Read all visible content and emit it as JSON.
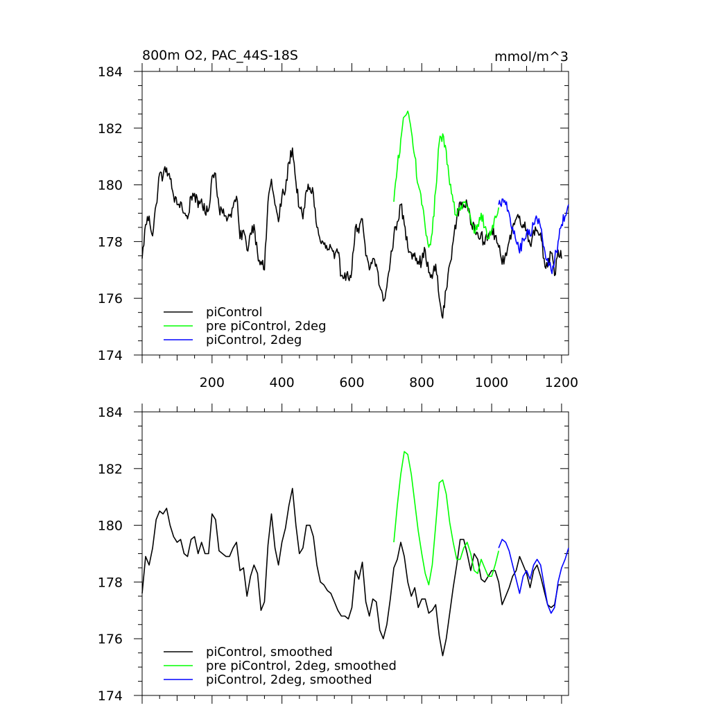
{
  "title_left": "800m O2, PAC_44S-18S",
  "units": "mmol/m^3",
  "chart_data": [
    {
      "type": "line",
      "panel": "top",
      "xlim": [
        0,
        1220
      ],
      "ylim": [
        174,
        184
      ],
      "yticks": [
        174,
        176,
        178,
        180,
        182,
        184
      ],
      "ytick_labels": [
        "174",
        "176",
        "178",
        "180",
        "182",
        "184"
      ],
      "xticks": [
        200,
        400,
        600,
        800,
        1000,
        1200
      ],
      "xtick_labels": [
        "200",
        "400",
        "600",
        "800",
        "1000",
        "1200"
      ],
      "legend": "bottom-left",
      "series": [
        {
          "name": "piControl",
          "color": "#000000",
          "noise": 0.22,
          "x": [
            0,
            10,
            20,
            30,
            40,
            50,
            60,
            70,
            80,
            90,
            100,
            110,
            120,
            130,
            140,
            150,
            160,
            170,
            180,
            190,
            200,
            210,
            220,
            230,
            240,
            250,
            260,
            270,
            280,
            290,
            300,
            310,
            320,
            330,
            340,
            350,
            360,
            370,
            380,
            390,
            400,
            410,
            420,
            430,
            440,
            450,
            460,
            470,
            480,
            490,
            500,
            510,
            520,
            530,
            540,
            550,
            560,
            570,
            580,
            590,
            600,
            610,
            620,
            630,
            640,
            650,
            660,
            670,
            680,
            690,
            700,
            710,
            720,
            730,
            740,
            750,
            760,
            770,
            780,
            790,
            800,
            810,
            820,
            830,
            840,
            850,
            860,
            870,
            880,
            890,
            900,
            910,
            920,
            930,
            940,
            950,
            960,
            970,
            980,
            990,
            1000,
            1010,
            1020,
            1030,
            1040,
            1050,
            1060,
            1070,
            1080,
            1090,
            1100,
            1110,
            1120,
            1130,
            1140,
            1150,
            1160,
            1170,
            1180,
            1190,
            1200
          ],
          "y": [
            177.4,
            178.6,
            178.9,
            178.2,
            179.3,
            180.4,
            180.3,
            180.6,
            180.2,
            179.6,
            179.3,
            179.4,
            179.0,
            178.8,
            179.6,
            179.7,
            179.2,
            179.5,
            179.0,
            179.1,
            180.3,
            180.4,
            179.2,
            179.0,
            178.9,
            178.9,
            179.2,
            179.6,
            178.1,
            178.4,
            177.7,
            178.3,
            178.6,
            177.6,
            177.3,
            177.0,
            179.4,
            180.2,
            179.3,
            178.7,
            179.6,
            179.8,
            180.8,
            181.3,
            180.1,
            179.2,
            178.8,
            179.8,
            179.9,
            179.7,
            178.5,
            178.0,
            177.9,
            177.7,
            177.8,
            177.4,
            177.6,
            176.8,
            176.9,
            176.7,
            177.0,
            178.5,
            178.3,
            178.8,
            177.5,
            177.0,
            177.4,
            177.2,
            176.4,
            175.9,
            176.4,
            177.3,
            178.2,
            178.7,
            179.3,
            178.6,
            177.8,
            177.6,
            177.6,
            177.3,
            177.3,
            177.7,
            176.9,
            176.7,
            177.2,
            176.0,
            175.3,
            176.3,
            177.2,
            178.0,
            178.8,
            179.4,
            179.3,
            179.3,
            178.6,
            178.6,
            178.3,
            178.3,
            177.9,
            178.2,
            178.4,
            178.2,
            177.8,
            177.2,
            177.6,
            178.0,
            178.5,
            178.8,
            178.9,
            178.6,
            178.4,
            177.9,
            178.4,
            178.4,
            178.3,
            177.4,
            177.1,
            177.6,
            176.8,
            177.7,
            177.4
          ]
        },
        {
          "name": "pre piControl, 2deg",
          "color": "#00ff00",
          "noise": 0.2,
          "x": [
            720,
            730,
            740,
            750,
            760,
            770,
            780,
            790,
            800,
            810,
            820,
            830,
            840,
            850,
            860,
            870,
            880,
            890,
            900,
            910,
            920,
            930,
            940,
            950,
            960,
            970,
            980,
            990,
            1000,
            1010,
            1020
          ],
          "y": [
            179.4,
            180.6,
            181.6,
            182.4,
            182.6,
            181.9,
            181.0,
            180.0,
            179.3,
            178.5,
            177.8,
            178.3,
            179.8,
            181.5,
            181.8,
            181.2,
            180.0,
            179.4,
            178.9,
            179.1,
            179.4,
            179.2,
            178.8,
            178.3,
            178.6,
            179.0,
            178.5,
            178.1,
            178.4,
            178.9,
            179.2
          ]
        },
        {
          "name": "piControl, 2deg",
          "color": "#0000ff",
          "noise": 0.22,
          "x": [
            1020,
            1030,
            1040,
            1050,
            1060,
            1070,
            1080,
            1090,
            1100,
            1110,
            1120,
            1130,
            1140,
            1150,
            1160,
            1170,
            1180,
            1190,
            1200,
            1210,
            1220
          ],
          "y": [
            179.3,
            179.5,
            179.3,
            179.0,
            178.5,
            178.0,
            177.6,
            178.1,
            178.3,
            178.2,
            178.6,
            178.8,
            178.5,
            177.8,
            177.4,
            177.0,
            177.3,
            178.0,
            178.6,
            178.9,
            179.3
          ]
        }
      ]
    },
    {
      "type": "line",
      "panel": "bottom",
      "xlim": [
        0,
        1220
      ],
      "ylim": [
        174,
        184
      ],
      "yticks": [
        174,
        176,
        178,
        180,
        182,
        184
      ],
      "ytick_labels": [
        "174",
        "176",
        "178",
        "180",
        "182",
        "184"
      ],
      "legend": "bottom-left",
      "series": [
        {
          "name": "piControl, smoothed",
          "color": "#000000",
          "noise": 0.0,
          "x": [
            0,
            10,
            20,
            30,
            40,
            50,
            60,
            70,
            80,
            90,
            100,
            110,
            120,
            130,
            140,
            150,
            160,
            170,
            180,
            190,
            200,
            210,
            220,
            230,
            240,
            250,
            260,
            270,
            280,
            290,
            300,
            310,
            320,
            330,
            340,
            350,
            360,
            370,
            380,
            390,
            400,
            410,
            420,
            430,
            440,
            450,
            460,
            470,
            480,
            490,
            500,
            510,
            520,
            530,
            540,
            550,
            560,
            570,
            580,
            590,
            600,
            610,
            620,
            630,
            640,
            650,
            660,
            670,
            680,
            690,
            700,
            710,
            720,
            730,
            740,
            750,
            760,
            770,
            780,
            790,
            800,
            810,
            820,
            830,
            840,
            850,
            860,
            870,
            880,
            890,
            900,
            910,
            920,
            930,
            940,
            950,
            960,
            970,
            980,
            990,
            1000,
            1010,
            1020,
            1030,
            1040,
            1050,
            1060,
            1070,
            1080,
            1090,
            1100,
            1110,
            1120,
            1130,
            1140,
            1150,
            1160,
            1170,
            1180,
            1190,
            1200
          ],
          "y": [
            177.6,
            178.9,
            178.6,
            179.2,
            180.2,
            180.5,
            180.4,
            180.6,
            180.0,
            179.6,
            179.4,
            179.5,
            179.0,
            178.9,
            179.5,
            179.6,
            179.0,
            179.4,
            179.0,
            179.0,
            180.4,
            180.2,
            179.1,
            179.0,
            178.9,
            178.9,
            179.2,
            179.4,
            178.4,
            178.5,
            177.5,
            178.2,
            178.6,
            178.3,
            177.0,
            177.3,
            179.3,
            180.4,
            179.2,
            178.6,
            179.4,
            179.9,
            180.7,
            181.3,
            180.0,
            179.0,
            179.2,
            180.0,
            180.0,
            179.6,
            178.6,
            178.0,
            177.9,
            177.7,
            177.6,
            177.3,
            177.0,
            176.8,
            176.8,
            176.7,
            177.1,
            178.4,
            178.1,
            178.7,
            177.3,
            176.8,
            177.4,
            177.3,
            176.3,
            176.0,
            176.5,
            177.4,
            178.5,
            178.8,
            179.4,
            178.9,
            178.0,
            177.5,
            177.8,
            177.1,
            177.4,
            177.4,
            176.9,
            177.0,
            177.2,
            176.1,
            175.4,
            176.0,
            176.9,
            177.8,
            178.6,
            179.5,
            179.5,
            179.0,
            178.4,
            179.0,
            178.8,
            178.1,
            178.0,
            178.2,
            178.4,
            178.4,
            178.0,
            177.2,
            177.5,
            177.8,
            178.2,
            178.4,
            178.9,
            178.6,
            178.3,
            177.8,
            178.4,
            178.6,
            178.2,
            177.7,
            177.2,
            177.1,
            177.2,
            177.9,
            177.9
          ]
        },
        {
          "name": "pre piControl, 2deg, smoothed",
          "color": "#00ff00",
          "noise": 0.0,
          "x": [
            720,
            730,
            740,
            750,
            760,
            770,
            780,
            790,
            800,
            810,
            820,
            830,
            840,
            850,
            860,
            870,
            880,
            890,
            900,
            910,
            920,
            930,
            940,
            950,
            960,
            970,
            980,
            990,
            1000,
            1010,
            1020
          ],
          "y": [
            179.4,
            180.7,
            181.8,
            182.6,
            182.5,
            181.8,
            180.8,
            179.8,
            179.0,
            178.3,
            177.9,
            178.6,
            180.0,
            181.5,
            181.6,
            181.1,
            180.1,
            179.4,
            178.8,
            178.8,
            179.2,
            179.4,
            179.0,
            178.4,
            178.3,
            178.8,
            178.5,
            178.2,
            178.2,
            178.6,
            179.1
          ]
        },
        {
          "name": "piControl, 2deg, smoothed",
          "color": "#0000ff",
          "noise": 0.0,
          "x": [
            1020,
            1030,
            1040,
            1050,
            1060,
            1070,
            1080,
            1090,
            1100,
            1110,
            1120,
            1130,
            1140,
            1150,
            1160,
            1170,
            1180,
            1190,
            1200,
            1210,
            1220
          ],
          "y": [
            179.2,
            179.5,
            179.4,
            179.1,
            178.6,
            178.1,
            177.6,
            178.2,
            178.4,
            178.1,
            178.6,
            178.8,
            178.6,
            177.9,
            177.2,
            176.9,
            177.1,
            178.0,
            178.5,
            178.8,
            179.2
          ]
        }
      ]
    }
  ]
}
